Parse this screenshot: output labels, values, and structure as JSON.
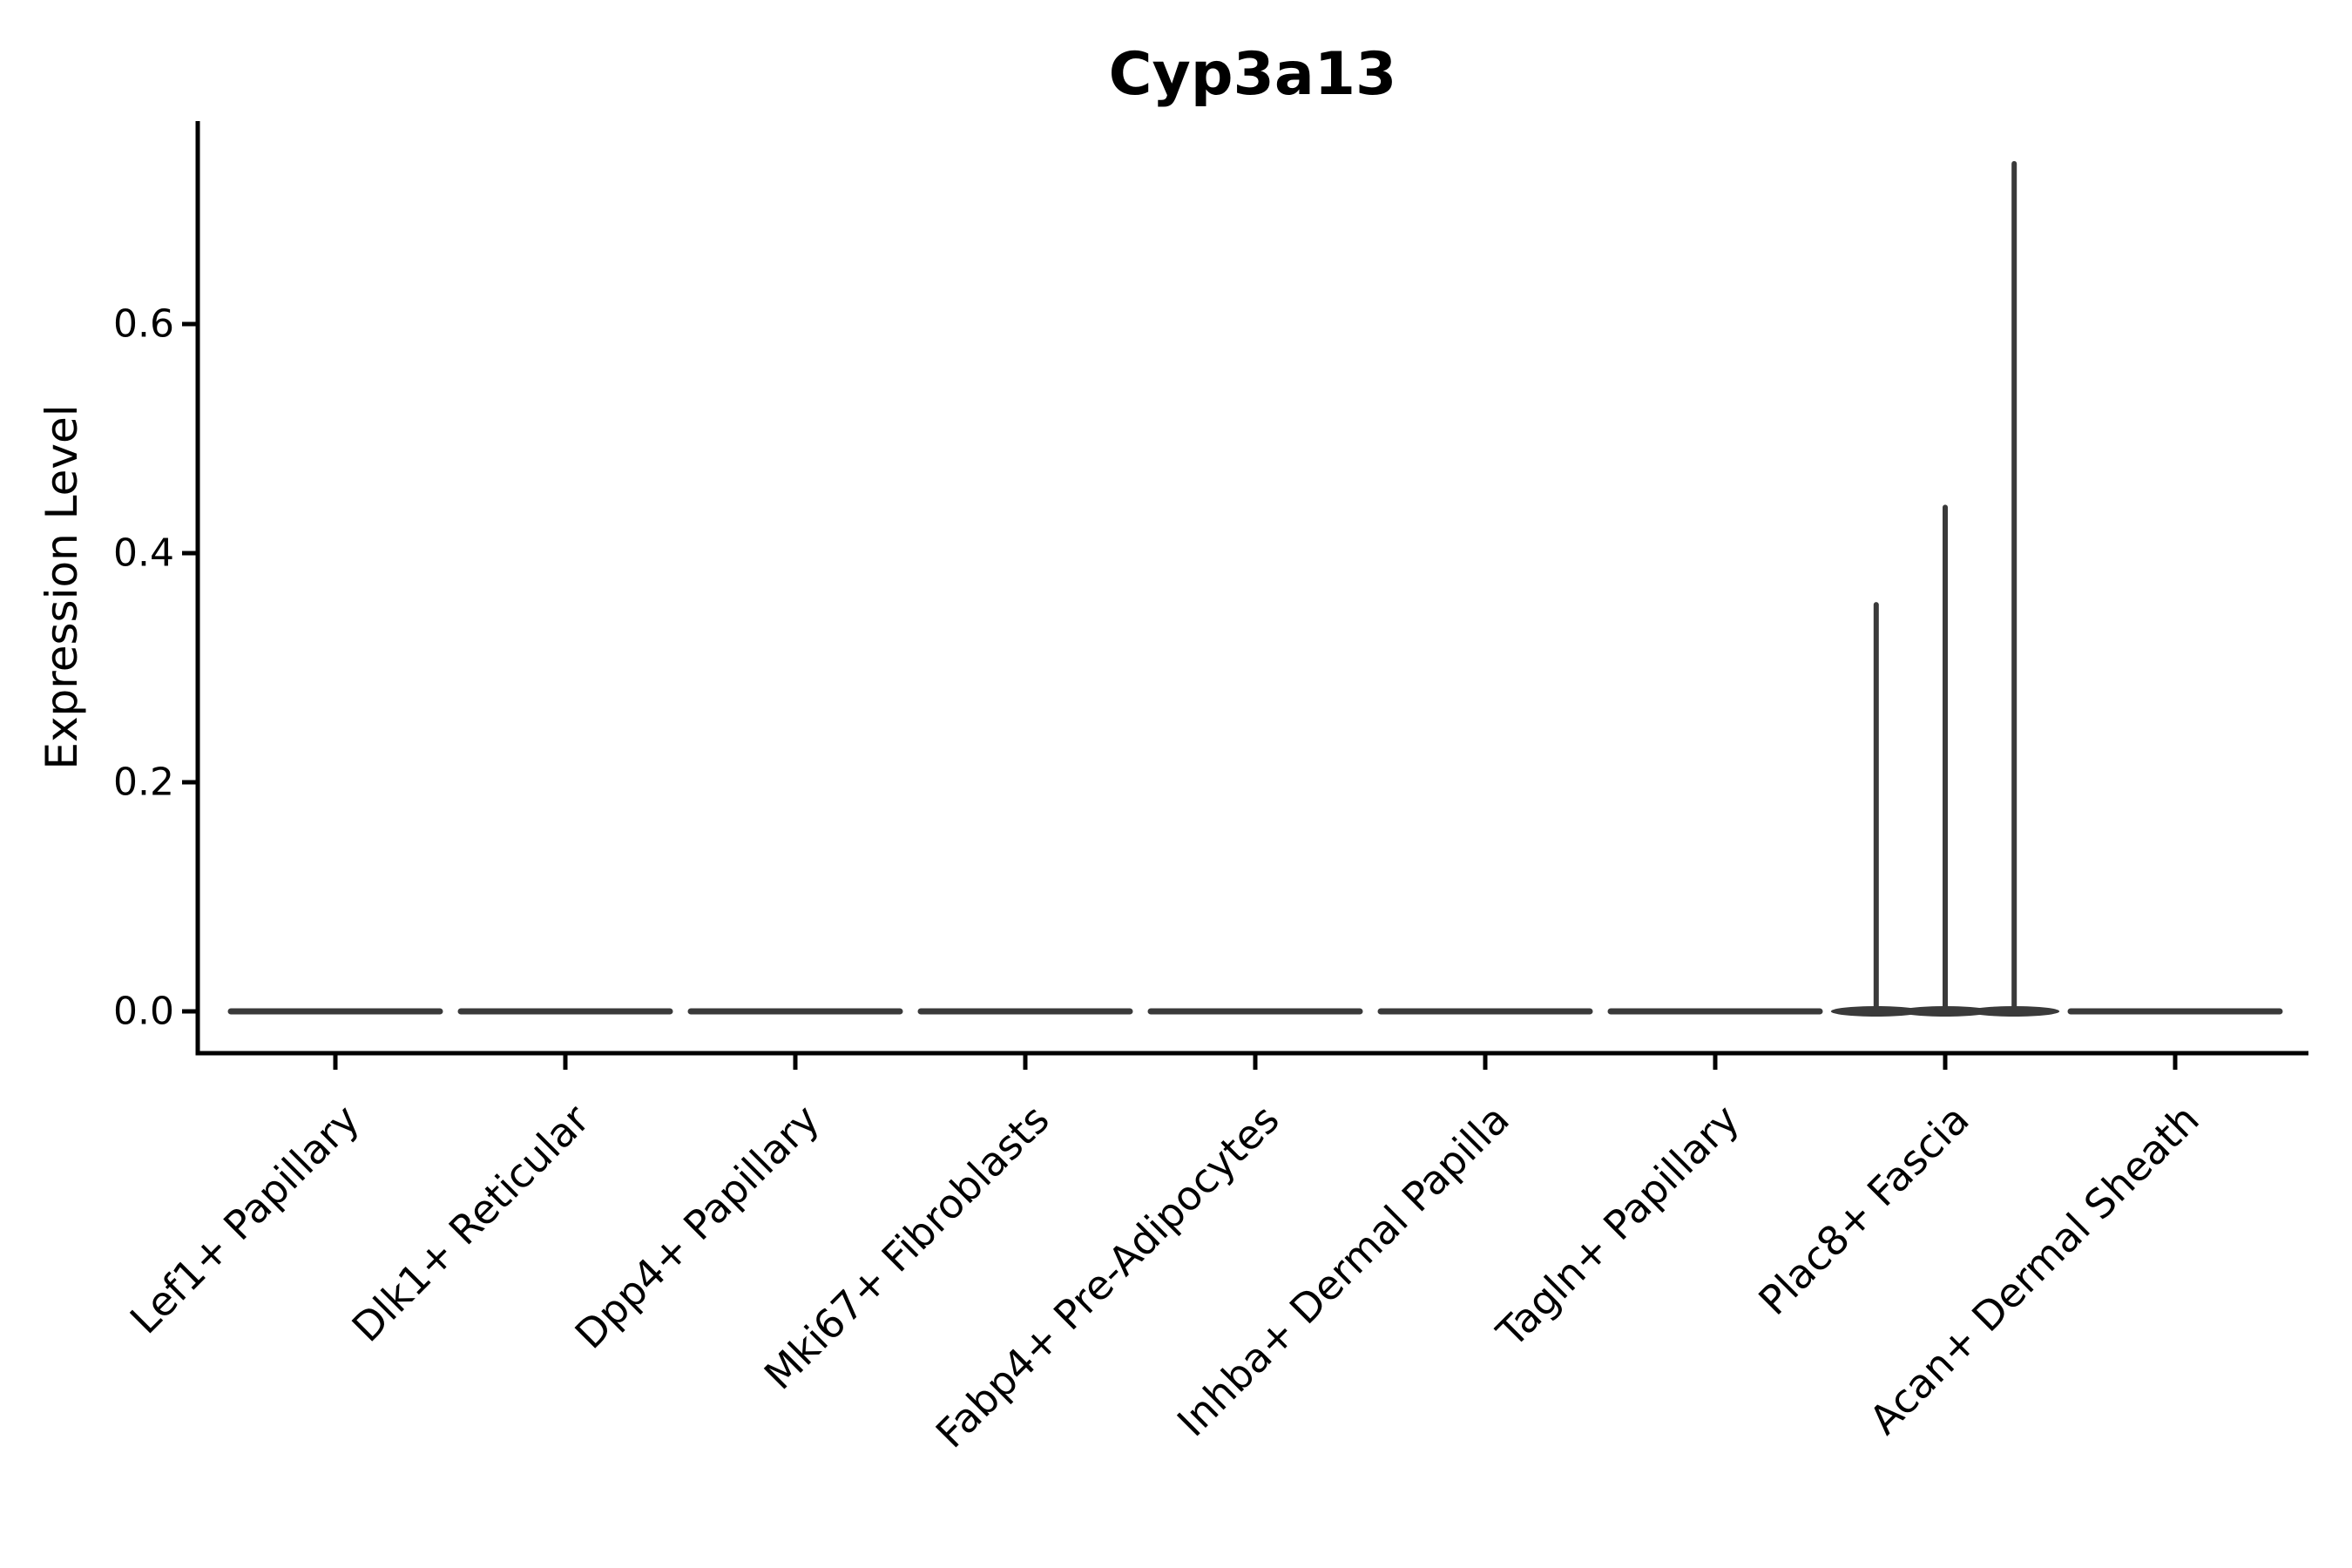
{
  "chart_data": {
    "type": "violin",
    "title": "Cyp3a13",
    "xlabel": "",
    "ylabel": "Expression Level",
    "categories": [
      "Lef1+ Papillary",
      "Dlk1+ Reticular",
      "Dpp4+ Papillary",
      "Mki67+ Fibroblasts",
      "Fabp4+ Pre-Adipocytes",
      "Inhba+ Dermal Papilla",
      "Tagln+ Papillary",
      "Plac8+ Fascia",
      "Acan+ Dermal Sheath"
    ],
    "y_ticks": [
      0.0,
      0.2,
      0.4,
      0.6
    ],
    "y_tick_labels": [
      "0.0",
      "0.2",
      "0.4",
      "0.6"
    ],
    "ylim": [
      -0.037,
      0.777
    ],
    "grid": false,
    "legend_position": "none",
    "x_tick_label_rotation_deg": 45,
    "violins": [
      {
        "category": "Lef1+ Papillary",
        "baseline_value": 0.0,
        "spikes": []
      },
      {
        "category": "Dlk1+ Reticular",
        "baseline_value": 0.0,
        "spikes": []
      },
      {
        "category": "Dpp4+ Papillary",
        "baseline_value": 0.0,
        "spikes": []
      },
      {
        "category": "Mki67+ Fibroblasts",
        "baseline_value": 0.0,
        "spikes": []
      },
      {
        "category": "Fabp4+ Pre-Adipocytes",
        "baseline_value": 0.0,
        "spikes": []
      },
      {
        "category": "Inhba+ Dermal Papilla",
        "baseline_value": 0.0,
        "spikes": []
      },
      {
        "category": "Tagln+ Papillary",
        "baseline_value": 0.0,
        "spikes": []
      },
      {
        "category": "Plac8+ Fascia",
        "baseline_value": 0.0,
        "spikes": [
          {
            "value": 0.355,
            "offset_frac": -0.3
          },
          {
            "value": 0.44,
            "offset_frac": 0.0
          },
          {
            "value": 0.74,
            "offset_frac": 0.3
          }
        ]
      },
      {
        "category": "Acan+ Dermal Sheath",
        "baseline_value": 0.0,
        "spikes": []
      }
    ],
    "colors": {
      "violin_stroke": "#3a3a3a",
      "axis": "#000000",
      "text": "#000000",
      "background": "#ffffff"
    }
  }
}
